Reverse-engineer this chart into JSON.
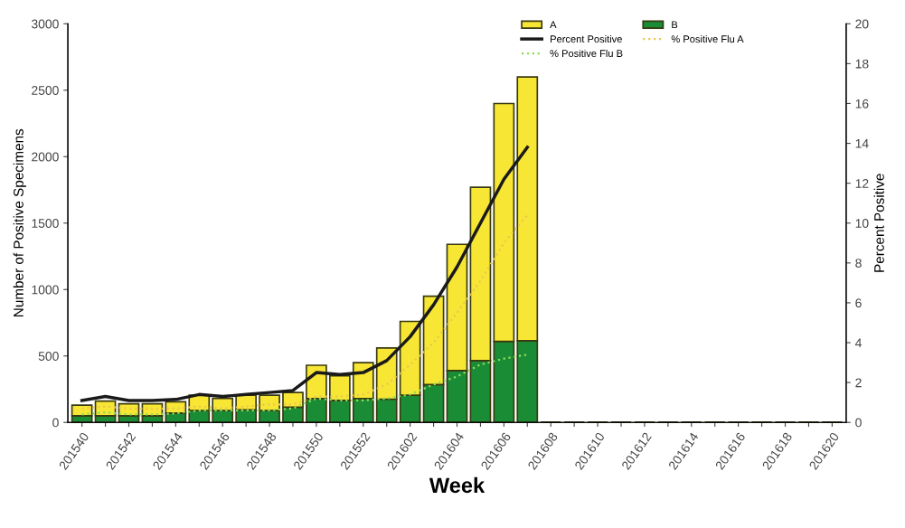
{
  "chart_data": {
    "type": "bar",
    "stacked": true,
    "xlabel": "Week",
    "ylabel": "Number of Positive Specimens",
    "y2label": "Percent Positive",
    "categories": [
      "201540",
      null,
      "201542",
      null,
      "201544",
      null,
      "201546",
      null,
      "201548",
      null,
      "201550",
      null,
      "201552",
      null,
      "201602",
      null,
      "201604",
      null,
      "201606",
      null,
      "201608",
      null,
      "201610",
      null,
      "201612",
      null,
      "201614",
      null,
      "201616",
      null,
      "201618",
      null,
      "201620"
    ],
    "series": [
      {
        "name": "B",
        "color": "#1a8c36",
        "values": [
          50,
          50,
          50,
          50,
          70,
          90,
          90,
          95,
          90,
          115,
          180,
          165,
          180,
          175,
          205,
          285,
          390,
          465,
          610,
          615,
          null,
          null,
          null,
          null,
          null,
          null,
          null,
          null,
          null,
          null,
          null,
          null,
          null
        ]
      },
      {
        "name": "A",
        "color": "#f7e634",
        "values": [
          80,
          110,
          90,
          90,
          85,
          115,
          90,
          110,
          115,
          110,
          250,
          185,
          270,
          385,
          555,
          665,
          950,
          1305,
          1790,
          1985,
          null,
          null,
          null,
          null,
          null,
          null,
          null,
          null,
          null,
          null,
          null,
          null,
          null
        ]
      },
      {
        "name": "Percent Positive",
        "type": "line",
        "axis": "y2",
        "color": "#1a1a1a",
        "line_style": "solid",
        "values": [
          1.1,
          1.3,
          1.1,
          1.1,
          1.15,
          1.4,
          1.3,
          1.4,
          1.5,
          1.6,
          2.5,
          2.4,
          2.5,
          3.1,
          4.3,
          5.9,
          7.8,
          10,
          12.2,
          13.8,
          null,
          null,
          null,
          null,
          null,
          null,
          null,
          null,
          null,
          null,
          null,
          null,
          null
        ]
      },
      {
        "name": "% Positive Flu A",
        "type": "line",
        "axis": "y2",
        "color": "#e8c850",
        "line_style": "dotted",
        "values": [
          0.7,
          0.8,
          0.7,
          0.7,
          0.7,
          0.8,
          0.7,
          0.8,
          0.9,
          0.9,
          1.3,
          1.3,
          1.4,
          1.9,
          2.9,
          4.0,
          5.5,
          7.1,
          9.0,
          10.4,
          null,
          null,
          null,
          null,
          null,
          null,
          null,
          null,
          null,
          null,
          null,
          null,
          null
        ]
      },
      {
        "name": "% Positive Flu B",
        "type": "line",
        "axis": "y2",
        "color": "#8cdc5a",
        "line_style": "dotted",
        "values": [
          0.4,
          0.5,
          0.4,
          0.4,
          0.45,
          0.6,
          0.6,
          0.6,
          0.6,
          0.7,
          1.2,
          1.1,
          1.1,
          1.2,
          1.4,
          1.9,
          2.3,
          2.9,
          3.2,
          3.4,
          null,
          null,
          null,
          null,
          null,
          null,
          null,
          null,
          null,
          null,
          null,
          null,
          null
        ]
      }
    ],
    "ylim": [
      0,
      3000
    ],
    "yticks": [
      0,
      500,
      1000,
      1500,
      2000,
      2500,
      3000
    ],
    "y2lim": [
      0,
      20
    ],
    "y2ticks": [
      0,
      2,
      4,
      6,
      8,
      10,
      12,
      14,
      16,
      18,
      20
    ],
    "grid": false,
    "legend": "top right"
  }
}
